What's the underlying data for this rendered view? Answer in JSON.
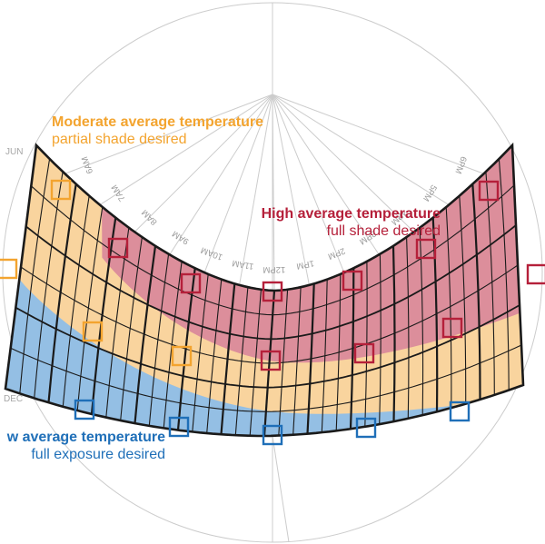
{
  "legend": {
    "moderate": {
      "heading": "Moderate average temperature",
      "sub": "partial shade desired",
      "color": "#f3a42f"
    },
    "high": {
      "heading": "High average temperature",
      "sub": "full shade desired",
      "color": "#b5203a"
    },
    "low": {
      "heading": "w average temperature",
      "sub": "full exposure desired",
      "color": "#1f6fb8"
    }
  },
  "months": [
    "JUN",
    "DEC"
  ],
  "hours": [
    "6AM",
    "7AM",
    "8AM",
    "9AM",
    "10AM",
    "11AM",
    "12PM",
    "1PM",
    "2PM",
    "3PM",
    "4PM",
    "5PM",
    "6PM"
  ],
  "colors": {
    "hot_fill": "#dc8e9b",
    "moderate_fill": "#f9d49e",
    "cool_fill": "#94bfe4",
    "grid_line": "#1a1a1a",
    "construction_line": "#cccccc"
  }
}
